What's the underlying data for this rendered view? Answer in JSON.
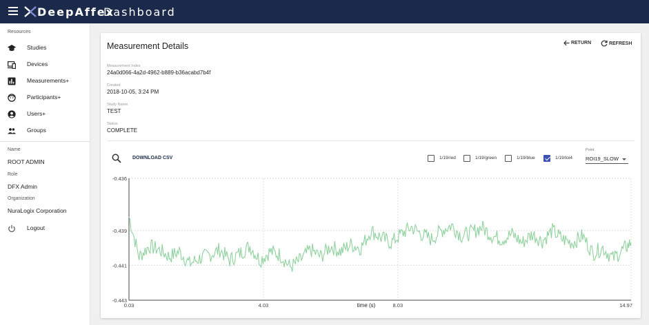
{
  "app": {
    "brand": "DeepAffex",
    "title": "Dashboard"
  },
  "icons": {
    "menu": "menu-icon",
    "logo": "logo-x-icon"
  },
  "sidebar": {
    "section_title": "Resources",
    "items": [
      {
        "label": "Studies",
        "icon": "school-icon"
      },
      {
        "label": "Devices",
        "icon": "devices-icon"
      },
      {
        "label": "Measurements+",
        "icon": "bar-chart-icon"
      },
      {
        "label": "Participants+",
        "icon": "face-icon"
      },
      {
        "label": "Users+",
        "icon": "account-circle-icon"
      },
      {
        "label": "Groups",
        "icon": "people-icon"
      }
    ],
    "name_label": "Name",
    "name_value": "ROOT ADMIN",
    "role_label": "Role",
    "role_value": "DFX Admin",
    "org_label": "Organization",
    "org_value": "NuraLogix Corporation",
    "logout_label": "Logout"
  },
  "details": {
    "title": "Measurement Details",
    "return_label": "RETURN",
    "refresh_label": "REFRESH",
    "fields": [
      {
        "label": "Measurement Index",
        "value": "24a0d066-4a2d-4962-b889-b36acabd7b4f"
      },
      {
        "label": "Created",
        "value": "2018-10-05, 3:24 PM"
      },
      {
        "label": "Study Name",
        "value": "TEST"
      },
      {
        "label": "Status",
        "value": "COMPLETE"
      }
    ]
  },
  "toolbar": {
    "download_label": "DOWNLOAD CSV",
    "checkboxes": [
      {
        "label": "1/19/red",
        "checked": false
      },
      {
        "label": "1/19/green",
        "checked": false
      },
      {
        "label": "1/19/blue",
        "checked": false
      },
      {
        "label": "1/19/toi4",
        "checked": true
      }
    ],
    "point_label": "Point",
    "point_value": "ROI19_SLOW"
  },
  "colors": {
    "header": "#1b2a4a",
    "accent": "#3f51b5",
    "series": "#8fd19e"
  },
  "chart_data": {
    "type": "line",
    "title": "",
    "xlabel": "time (s)",
    "ylabel": "",
    "xlim": [
      0.03,
      14.97
    ],
    "ylim": [
      -0.443,
      -0.436
    ],
    "xticks": [
      "0.03",
      "4.03",
      "8.03",
      "14.97"
    ],
    "yticks": [
      "-0.436",
      "-0.439",
      "-0.441",
      "-0.443"
    ],
    "grid": true,
    "series": [
      {
        "x": [
          0.03,
          0.33,
          0.63,
          0.93,
          1.23,
          1.53,
          1.83,
          2.13,
          2.43,
          2.73,
          3.03,
          3.33,
          3.63,
          3.93,
          4.23,
          4.53,
          4.83,
          5.13,
          5.43,
          5.73,
          6.03,
          6.33,
          6.63,
          6.93,
          7.23,
          7.53,
          7.83,
          8.13,
          8.43,
          8.73,
          9.03,
          9.33,
          9.63,
          9.93,
          10.23,
          10.53,
          10.83,
          11.13,
          11.43,
          11.73,
          12.03,
          12.33,
          12.63,
          12.93,
          13.23,
          13.53,
          13.83,
          14.13,
          14.43,
          14.73,
          14.97
        ],
        "y": [
          -0.4382,
          -0.4405,
          -0.4399,
          -0.4401,
          -0.4405,
          -0.4402,
          -0.4409,
          -0.4406,
          -0.4404,
          -0.4401,
          -0.4407,
          -0.4403,
          -0.4399,
          -0.4407,
          -0.4402,
          -0.4404,
          -0.4411,
          -0.4407,
          -0.4401,
          -0.4405,
          -0.4399,
          -0.4402,
          -0.4398,
          -0.44,
          -0.439,
          -0.4394,
          -0.4397,
          -0.4392,
          -0.4388,
          -0.4392,
          -0.4395,
          -0.439,
          -0.4387,
          -0.4393,
          -0.4391,
          -0.4388,
          -0.4393,
          -0.4395,
          -0.4392,
          -0.4397,
          -0.4392,
          -0.4396,
          -0.439,
          -0.4395,
          -0.4397,
          -0.4393,
          -0.4403,
          -0.44,
          -0.4406,
          -0.4401,
          -0.4397
        ]
      }
    ]
  }
}
